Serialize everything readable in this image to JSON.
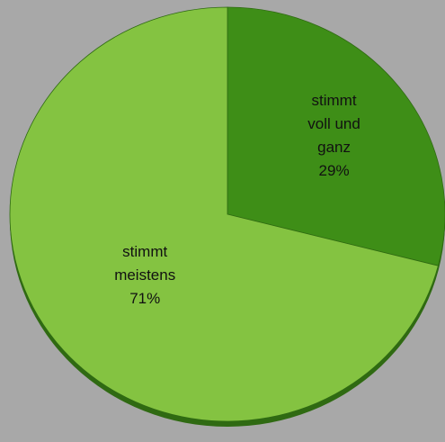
{
  "chart_data": {
    "type": "pie",
    "categories": [
      "stimmt voll und ganz",
      "stimmt meistens"
    ],
    "values": [
      29,
      71
    ],
    "value_labels": [
      "29%",
      "71%"
    ],
    "colors": [
      "#3e8e17",
      "#84c341"
    ]
  }
}
